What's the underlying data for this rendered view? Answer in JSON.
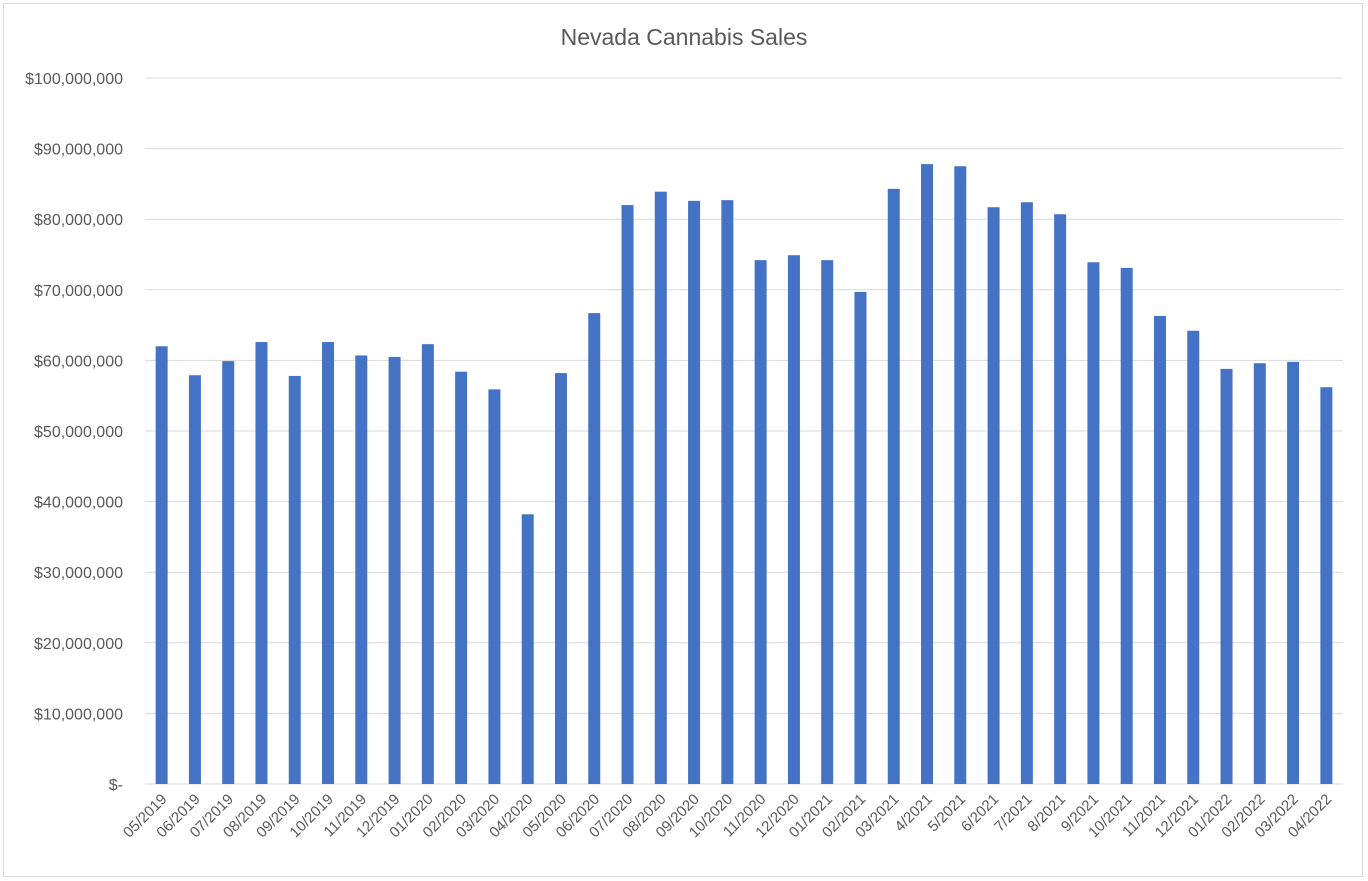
{
  "chart_data": {
    "type": "bar",
    "title": "Nevada Cannabis Sales",
    "xlabel": "",
    "ylabel": "",
    "ylim": [
      0,
      100000000
    ],
    "ytick_step": 10000000,
    "ytick_labels": [
      "$-",
      "$10,000,000",
      "$20,000,000",
      "$30,000,000",
      "$40,000,000",
      "$50,000,000",
      "$60,000,000",
      "$70,000,000",
      "$80,000,000",
      "$90,000,000",
      "$100,000,000"
    ],
    "grid": true,
    "bar_color": "#4472C4",
    "categories": [
      "05/2019",
      "06/2019",
      "07/2019",
      "08/2019",
      "09/2019",
      "10/2019",
      "11/2019",
      "12/2019",
      "01/2020",
      "02/2020",
      "03/2020",
      "04/2020",
      "05/2020",
      "06/2020",
      "07/2020",
      "08/2020",
      "09/2020",
      "10/2020",
      "11/2020",
      "12/2020",
      "01/2021",
      "02/2021",
      "03/2021",
      "4/2021",
      "5/2021",
      "6/2021",
      "7/2021",
      "8/2021",
      "9/2021",
      "10/2021",
      "11/2021",
      "12/2021",
      "01/2022",
      "02/2022",
      "03/2022",
      "04/2022"
    ],
    "values": [
      62000000,
      57900000,
      59900000,
      62600000,
      57800000,
      62600000,
      60700000,
      60500000,
      62300000,
      58400000,
      55900000,
      38200000,
      58200000,
      66700000,
      82000000,
      83900000,
      82600000,
      82700000,
      74200000,
      74900000,
      74200000,
      69700000,
      84300000,
      87800000,
      87500000,
      81700000,
      82400000,
      80700000,
      73900000,
      73100000,
      66300000,
      64200000,
      58800000,
      59600000,
      59800000,
      56200000
    ]
  }
}
